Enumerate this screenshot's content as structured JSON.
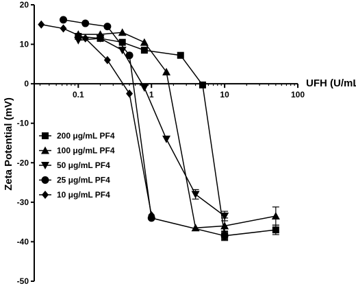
{
  "chart_data": {
    "type": "line",
    "title": "",
    "xlabel": "UFH (U/mL)",
    "ylabel": "Zeta Potential (mV)",
    "xscale": "log",
    "xlim": [
      0.025,
      100
    ],
    "ylim": [
      -50,
      20
    ],
    "x_ticks": [
      0.1,
      1,
      10,
      100
    ],
    "x_tick_labels": [
      "0.1",
      "1",
      "10",
      "100"
    ],
    "y_ticks": [
      20,
      10,
      0,
      -10,
      -20,
      -30,
      -40,
      -50
    ],
    "y_tick_labels": [
      "20",
      "10",
      "0",
      "-10",
      "-20",
      "-30",
      "-40",
      "-50"
    ],
    "grid": false,
    "legend_position": "left-center",
    "series": [
      {
        "name": "200 μg/mL PF4",
        "marker": "square",
        "x": [
          0.1,
          0.2,
          0.4,
          0.8,
          2.5,
          5.0,
          10,
          50
        ],
        "y": [
          12,
          11.5,
          10.5,
          8.5,
          7.2,
          -0.3,
          -38.5,
          -37.0
        ],
        "err": [
          0,
          0,
          0,
          0,
          0,
          0,
          1.2,
          1.2
        ]
      },
      {
        "name": "100 μg/mL PF4",
        "marker": "triangle-up",
        "x": [
          0.1,
          0.2,
          0.4,
          0.8,
          1.6,
          4.0,
          10,
          50
        ],
        "y": [
          12.5,
          12.5,
          13,
          10.5,
          3,
          -36.5,
          -36,
          -33.5
        ],
        "err": [
          0,
          0,
          0,
          0,
          0,
          0,
          2.0,
          2.3
        ]
      },
      {
        "name": "50 μg/mL PF4",
        "marker": "triangle-down",
        "x": [
          0.1,
          0.2,
          0.4,
          0.8,
          1.6,
          4.0,
          10,
          10
        ],
        "y": [
          11,
          11.5,
          8.5,
          -1.0,
          -14,
          -28,
          -33.5,
          -33.5
        ],
        "err": [
          0,
          0,
          0,
          0,
          0,
          1.2,
          1.2,
          0
        ]
      },
      {
        "name": "25 μg/mL PF4",
        "marker": "circle",
        "x": [
          0.0625,
          0.125,
          0.25,
          0.5,
          1.0,
          10
        ],
        "y": [
          16.2,
          15.3,
          14.5,
          7.2,
          -34.0,
          -38.5
        ],
        "err": [
          0,
          0,
          0,
          0,
          0,
          1.0
        ]
      },
      {
        "name": "10 μg/mL PF4",
        "marker": "diamond",
        "x": [
          0.0312,
          0.0625,
          0.125,
          0.25,
          0.5,
          1.0
        ],
        "y": [
          15.0,
          14.0,
          11.5,
          6.0,
          -2.5,
          -33.3
        ],
        "err": [
          0,
          0,
          0,
          0,
          0,
          0
        ]
      }
    ]
  }
}
